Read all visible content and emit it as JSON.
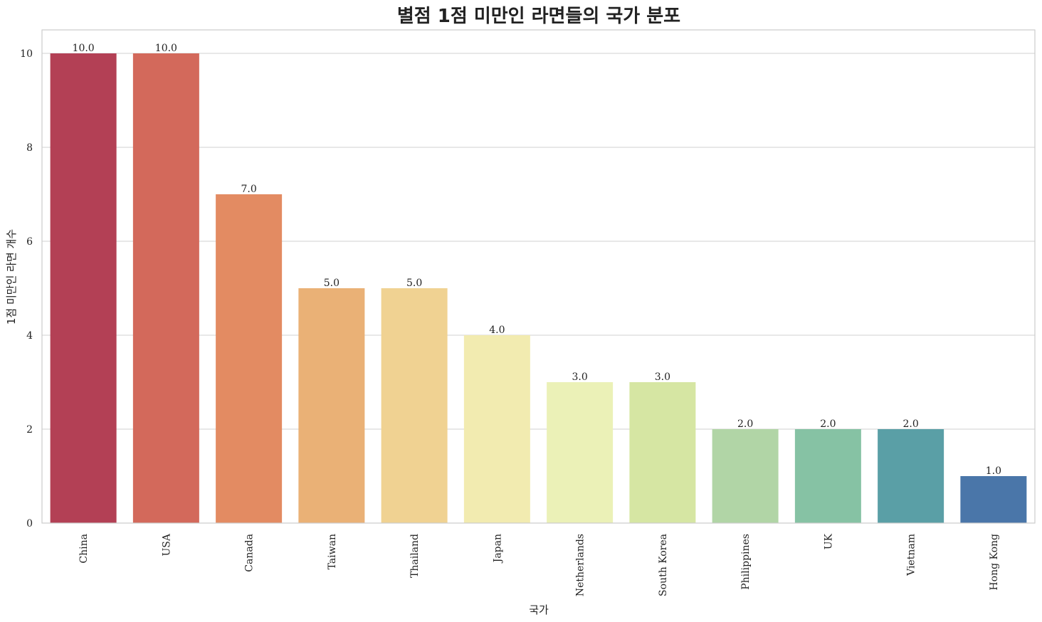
{
  "chart_data": {
    "type": "bar",
    "title": "별점 1점 미만인 라면들의 국가 분포",
    "xlabel": "국가",
    "ylabel": "1점 미만인 라면 개수",
    "categories": [
      "China",
      "USA",
      "Canada",
      "Taiwan",
      "Thailand",
      "Japan",
      "Netherlands",
      "South Korea",
      "Philippines",
      "UK",
      "Vietnam",
      "Hong Kong"
    ],
    "values": [
      10,
      10,
      7,
      5,
      5,
      4,
      3,
      3,
      2,
      2,
      2,
      1
    ],
    "value_labels": [
      "10.0",
      "10.0",
      "7.0",
      "5.0",
      "5.0",
      "4.0",
      "3.0",
      "3.0",
      "2.0",
      "2.0",
      "2.0",
      "1.0"
    ],
    "colors": [
      "#b34055",
      "#d3695b",
      "#e38b62",
      "#eab176",
      "#f0d292",
      "#f2ebb0",
      "#ebf1b7",
      "#d6e6a3",
      "#b1d5a6",
      "#86c2a4",
      "#5a9fa6",
      "#4a76a9"
    ],
    "yticks": [
      0,
      2,
      4,
      6,
      8,
      10
    ],
    "ylim": [
      0,
      10.5
    ],
    "grid": true,
    "legend": "none"
  }
}
